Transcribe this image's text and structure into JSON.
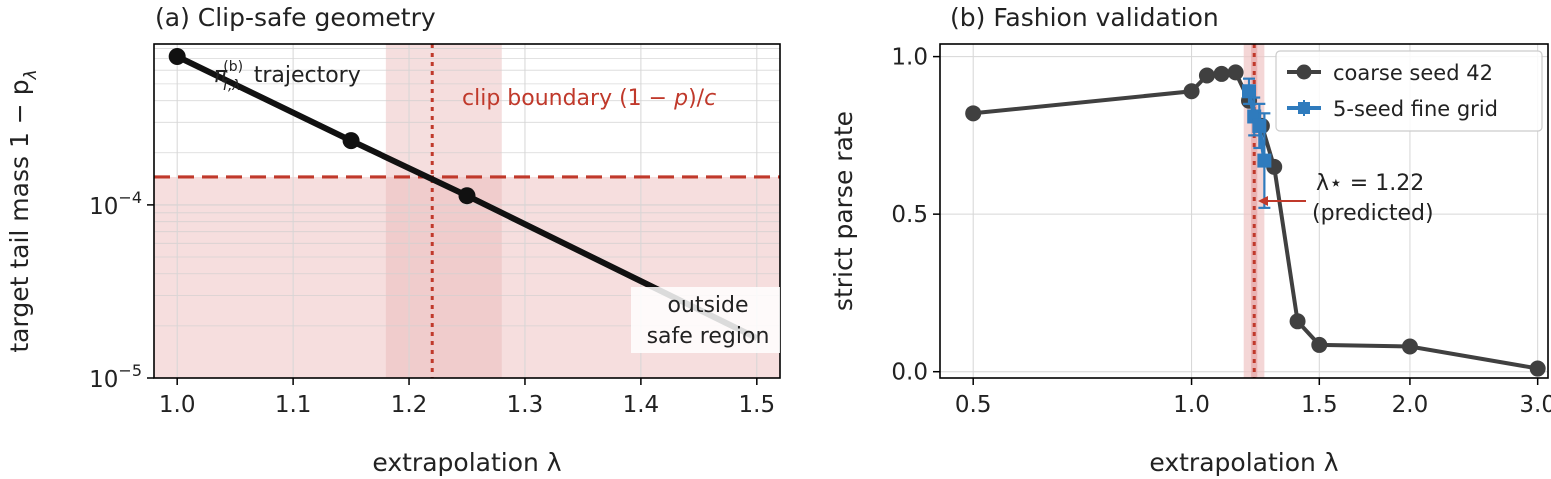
{
  "chart_data": [
    {
      "type": "line",
      "title": "(a) Clip-safe geometry",
      "xlabel": "extrapolation λ",
      "ylabel": "target tail mass 1 − p",
      "ylabel_subscript": "λ",
      "xlim": [
        0.98,
        1.52
      ],
      "ylim": [
        1e-05,
        0.00085
      ],
      "yscale": "log",
      "grid": true,
      "x_ticks": [
        1.0,
        1.1,
        1.2,
        1.3,
        1.4,
        1.5
      ],
      "x_tick_labels": [
        "1.0",
        "1.1",
        "1.2",
        "1.3",
        "1.4",
        "1.5"
      ],
      "y_tick_labels": [
        {
          "base": "10",
          "exp": "−4",
          "value": 0.0001
        },
        {
          "base": "10",
          "exp": "−5",
          "value": 1e-05
        }
      ],
      "series": [
        {
          "name": "π_{T,λ}^{(b)} trajectory",
          "label_main": "π",
          "label_sub": "T,λ",
          "label_sup": "(b)",
          "label_suffix": " trajectory",
          "color": "#111111",
          "x": [
            1.0,
            1.15,
            1.25,
            1.5
          ],
          "y": [
            0.00072,
            0.000235,
            0.000113,
            1.7e-05
          ],
          "markers": [
            true,
            true,
            true,
            false
          ]
        }
      ],
      "clip_boundary": {
        "y": 0.000145,
        "label_prefix": "clip boundary (1 − ",
        "label_var": "p",
        "label_mid": ")/",
        "label_var2": "c",
        "color": "#c0392b"
      },
      "lambda_star": {
        "x": 1.22,
        "band": [
          1.18,
          1.28
        ]
      },
      "outside_label": [
        "outside",
        "safe region"
      ],
      "colors": {
        "accent": "#c0392b",
        "shade": "#f3d3d3"
      }
    },
    {
      "type": "line",
      "title": "(b) Fashion validation",
      "xlabel": "extrapolation λ",
      "ylabel": "strict parse rate",
      "xlim": [
        0.45,
        3.1
      ],
      "ylim": [
        -0.02,
        1.04
      ],
      "xscale": "log",
      "grid": true,
      "x_ticks": [
        0.5,
        1.0,
        1.5,
        2.0,
        3.0
      ],
      "x_tick_labels": [
        "0.5",
        "1.0",
        "1.5",
        "2.0",
        "3.0"
      ],
      "y_ticks": [
        0.0,
        0.5,
        1.0
      ],
      "y_tick_labels": [
        "0.0",
        "0.5",
        "1.0"
      ],
      "series": [
        {
          "name": "coarse seed 42",
          "color": "#404040",
          "x": [
            0.5,
            1.0,
            1.05,
            1.1,
            1.15,
            1.2,
            1.25,
            1.3,
            1.4,
            1.5,
            2.0,
            3.0
          ],
          "y": [
            0.82,
            0.89,
            0.94,
            0.945,
            0.95,
            0.86,
            0.78,
            0.65,
            0.16,
            0.085,
            0.08,
            0.01
          ]
        },
        {
          "name": "5-seed fine grid",
          "color": "#2f7bbd",
          "x": [
            1.2,
            1.22,
            1.24,
            1.26
          ],
          "y": [
            0.89,
            0.81,
            0.78,
            0.67
          ],
          "err": [
            0.04,
            0.06,
            0.07,
            0.15
          ]
        }
      ],
      "lambda_star": {
        "x": 1.22,
        "band": [
          1.18,
          1.26
        ],
        "label": "λ⋆ = 1.22",
        "note": "(predicted)"
      },
      "legend": "top-right",
      "colors": {
        "accent": "#c0392b",
        "shade": "#f3d3d3"
      }
    }
  ]
}
